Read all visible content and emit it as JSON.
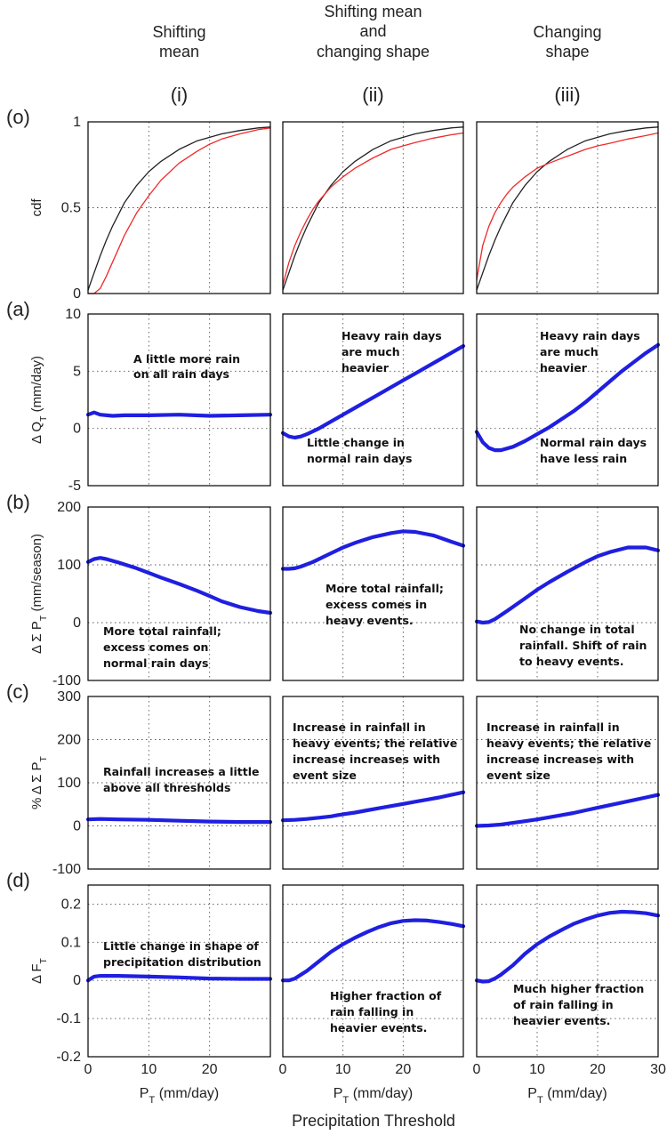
{
  "columns": [
    {
      "title_lines": [
        "Shifting",
        "mean"
      ],
      "roman": "(i)"
    },
    {
      "title_lines": [
        "Shifting mean",
        "and",
        "changing shape"
      ],
      "roman": "(ii)"
    },
    {
      "title_lines": [
        "Changing",
        "shape"
      ],
      "roman": "(iii)"
    }
  ],
  "rows": [
    {
      "label": "(o)",
      "ylabel": "cdf",
      "ylabel_sub": "",
      "ylabel_suffix": "",
      "ylim": [
        0,
        1
      ],
      "yticks": [
        "0",
        "0.5",
        "1"
      ]
    },
    {
      "label": "(a)",
      "ylabel": "Δ Q",
      "ylabel_sub": "T",
      "ylabel_suffix": " (mm/day)",
      "ylim": [
        -5,
        10
      ],
      "yticks": [
        "-5",
        "0",
        "5",
        "10"
      ]
    },
    {
      "label": "(b)",
      "ylabel": "Δ Σ P",
      "ylabel_sub": "T",
      "ylabel_suffix": " (mm/season)",
      "ylim": [
        -100,
        200
      ],
      "yticks": [
        "-100",
        "0",
        "100",
        "200"
      ]
    },
    {
      "label": "(c)",
      "ylabel": "% Δ Σ P",
      "ylabel_sub": "T",
      "ylabel_suffix": "",
      "ylim": [
        -100,
        300
      ],
      "yticks": [
        "-100",
        "0",
        "100",
        "200",
        "300"
      ]
    },
    {
      "label": "(d)",
      "ylabel": "Δ F",
      "ylabel_sub": "T",
      "ylabel_suffix": "",
      "ylim": [
        -0.2,
        0.25
      ],
      "yticks": [
        "-0.2",
        "-0.1",
        "0",
        "0.1",
        "0.2"
      ]
    }
  ],
  "x_axis": {
    "xlim": [
      0,
      30
    ],
    "xticks": [
      "0",
      "10",
      "20"
    ],
    "xticks_last_column": [
      "0",
      "10",
      "20",
      "30"
    ],
    "label_main": "P",
    "label_sub": "T",
    "label_suffix": " (mm/day)",
    "common_label": "Precipitation Threshold"
  },
  "annotations": {
    "a": [
      [
        "A little more rain",
        "on all rain days"
      ],
      [
        "Heavy rain days",
        "are much",
        "heavier",
        "Little change in",
        "normal rain days"
      ],
      [
        "Heavy rain days",
        "are much",
        "heavier",
        "Normal rain days",
        "have less rain"
      ]
    ],
    "b": [
      [
        "More total rainfall;",
        "excess comes on",
        "normal rain days"
      ],
      [
        "More total rainfall;",
        "excess comes in",
        "heavy events."
      ],
      [
        "No change in total",
        "rainfall. Shift of rain",
        "to heavy  events."
      ]
    ],
    "c": [
      [
        "Rainfall increases  a little",
        "above all thresholds"
      ],
      [
        "Increase in rainfall in",
        "heavy events; the relative",
        "increase increases with",
        "event size"
      ],
      [
        "Increase in rainfall in",
        "heavy events; the relative",
        "increase increases with",
        "event size"
      ]
    ],
    "d": [
      [
        "Little change in shape of",
        "precipitation distribution"
      ],
      [
        "Higher fraction of",
        "rain falling  in",
        "heavier events."
      ],
      [
        "Much higher fraction",
        "of rain falling  in",
        "heavier events."
      ]
    ]
  },
  "chart_data": {
    "type": "line",
    "x_range": [
      0,
      30
    ],
    "colors": {
      "baseline_cdf": "#222222",
      "changed_cdf": "#ee2a2a",
      "change_curves": "#1f1fe0"
    },
    "panels": [
      {
        "row": "o",
        "col": "i",
        "series": [
          {
            "color": "#222222",
            "x": [
              0,
              1,
              2,
              3,
              4,
              5,
              6,
              8,
              10,
              12,
              15,
              18,
              20,
              22,
              25,
              28,
              30
            ],
            "y": [
              0.02,
              0.12,
              0.22,
              0.31,
              0.39,
              0.46,
              0.53,
              0.63,
              0.71,
              0.77,
              0.84,
              0.89,
              0.91,
              0.93,
              0.95,
              0.965,
              0.97
            ]
          },
          {
            "color": "#ee2a2a",
            "x": [
              0,
              1,
              2,
              3,
              4,
              5,
              6,
              8,
              10,
              12,
              15,
              18,
              20,
              22,
              25,
              28,
              30
            ],
            "y": [
              0,
              0,
              0.03,
              0.1,
              0.18,
              0.26,
              0.34,
              0.47,
              0.57,
              0.66,
              0.76,
              0.83,
              0.87,
              0.9,
              0.93,
              0.955,
              0.965
            ]
          }
        ]
      },
      {
        "row": "o",
        "col": "ii",
        "series": [
          {
            "color": "#222222",
            "x": [
              0,
              1,
              2,
              3,
              4,
              5,
              6,
              8,
              10,
              12,
              15,
              18,
              20,
              22,
              25,
              28,
              30
            ],
            "y": [
              0.02,
              0.12,
              0.22,
              0.31,
              0.39,
              0.46,
              0.53,
              0.63,
              0.71,
              0.77,
              0.84,
              0.89,
              0.91,
              0.93,
              0.95,
              0.965,
              0.97
            ]
          },
          {
            "color": "#ee2a2a",
            "x": [
              0,
              1,
              2,
              3,
              4,
              5,
              6,
              8,
              10,
              12,
              15,
              18,
              20,
              22,
              25,
              28,
              30
            ],
            "y": [
              0.05,
              0.18,
              0.28,
              0.36,
              0.43,
              0.49,
              0.54,
              0.62,
              0.68,
              0.73,
              0.79,
              0.84,
              0.86,
              0.88,
              0.905,
              0.925,
              0.935
            ]
          }
        ]
      },
      {
        "row": "o",
        "col": "iii",
        "series": [
          {
            "color": "#222222",
            "x": [
              0,
              1,
              2,
              3,
              4,
              5,
              6,
              8,
              10,
              12,
              15,
              18,
              20,
              22,
              25,
              28,
              30
            ],
            "y": [
              0.02,
              0.12,
              0.22,
              0.31,
              0.39,
              0.46,
              0.53,
              0.63,
              0.71,
              0.77,
              0.84,
              0.89,
              0.91,
              0.93,
              0.95,
              0.965,
              0.97
            ]
          },
          {
            "color": "#ee2a2a",
            "x": [
              0,
              1,
              2,
              3,
              4,
              5,
              6,
              8,
              10,
              12,
              15,
              18,
              20,
              22,
              25,
              28,
              30
            ],
            "y": [
              0.08,
              0.28,
              0.39,
              0.47,
              0.53,
              0.58,
              0.62,
              0.68,
              0.73,
              0.76,
              0.8,
              0.84,
              0.86,
              0.875,
              0.9,
              0.92,
              0.935
            ]
          }
        ]
      },
      {
        "row": "a",
        "col": "i",
        "series": [
          {
            "color": "#1f1fe0",
            "x": [
              0,
              1,
              2,
              4,
              6,
              10,
              15,
              20,
              25,
              30
            ],
            "y": [
              1.2,
              1.4,
              1.2,
              1.1,
              1.15,
              1.15,
              1.2,
              1.1,
              1.15,
              1.2
            ]
          }
        ]
      },
      {
        "row": "a",
        "col": "ii",
        "series": [
          {
            "color": "#1f1fe0",
            "x": [
              0,
              1,
              2,
              3,
              4,
              6,
              8,
              10,
              12,
              14,
              16,
              18,
              20,
              22,
              24,
              26,
              28,
              30
            ],
            "y": [
              -0.4,
              -0.7,
              -0.8,
              -0.7,
              -0.5,
              0,
              0.6,
              1.2,
              1.8,
              2.4,
              3,
              3.6,
              4.2,
              4.8,
              5.4,
              6,
              6.6,
              7.2
            ]
          }
        ]
      },
      {
        "row": "a",
        "col": "iii",
        "series": [
          {
            "color": "#1f1fe0",
            "x": [
              0,
              1,
              2,
              3,
              4,
              6,
              8,
              10,
              12,
              14,
              16,
              18,
              20,
              22,
              24,
              26,
              28,
              30
            ],
            "y": [
              -0.3,
              -1.2,
              -1.7,
              -1.9,
              -1.9,
              -1.6,
              -1.1,
              -0.5,
              0.1,
              0.8,
              1.5,
              2.3,
              3.2,
              4.1,
              5,
              5.8,
              6.6,
              7.3
            ]
          }
        ]
      },
      {
        "row": "b",
        "col": "i",
        "series": [
          {
            "color": "#1f1fe0",
            "x": [
              0,
              1,
              2,
              3,
              5,
              8,
              10,
              12,
              15,
              18,
              20,
              22,
              25,
              28,
              30
            ],
            "y": [
              105,
              110,
              112,
              110,
              104,
              94,
              86,
              78,
              67,
              55,
              46,
              37,
              27,
              20,
              17
            ]
          }
        ]
      },
      {
        "row": "b",
        "col": "ii",
        "series": [
          {
            "color": "#1f1fe0",
            "x": [
              0,
              1,
              2,
              3,
              5,
              8,
              10,
              12,
              15,
              18,
              20,
              22,
              25,
              28,
              30
            ],
            "y": [
              93,
              93,
              94,
              97,
              105,
              120,
              130,
              138,
              148,
              155,
              158,
              157,
              151,
              140,
              133
            ]
          }
        ]
      },
      {
        "row": "b",
        "col": "iii",
        "series": [
          {
            "color": "#1f1fe0",
            "x": [
              0,
              1,
              2,
              3,
              5,
              8,
              10,
              12,
              15,
              18,
              20,
              22,
              25,
              28,
              30
            ],
            "y": [
              2,
              0,
              1,
              6,
              20,
              42,
              57,
              70,
              88,
              105,
              115,
              122,
              130,
              130,
              125
            ]
          }
        ]
      },
      {
        "row": "c",
        "col": "i",
        "series": [
          {
            "color": "#1f1fe0",
            "x": [
              0,
              2,
              5,
              10,
              15,
              20,
              25,
              30
            ],
            "y": [
              15,
              16,
              15,
              14,
              12,
              10,
              9,
              9
            ]
          }
        ]
      },
      {
        "row": "c",
        "col": "ii",
        "series": [
          {
            "color": "#1f1fe0",
            "x": [
              0,
              2,
              4,
              6,
              8,
              10,
              12,
              14,
              16,
              18,
              20,
              22,
              24,
              26,
              28,
              30
            ],
            "y": [
              13,
              14,
              16,
              19,
              22,
              27,
              31,
              36,
              41,
              46,
              51,
              56,
              61,
              66,
              72,
              78
            ]
          }
        ]
      },
      {
        "row": "c",
        "col": "iii",
        "series": [
          {
            "color": "#1f1fe0",
            "x": [
              0,
              2,
              4,
              6,
              8,
              10,
              12,
              14,
              16,
              18,
              20,
              22,
              24,
              26,
              28,
              30
            ],
            "y": [
              0,
              1,
              3,
              7,
              11,
              15,
              20,
              25,
              30,
              36,
              42,
              48,
              54,
              60,
              66,
              72
            ]
          }
        ]
      },
      {
        "row": "d",
        "col": "i",
        "series": [
          {
            "color": "#1f1fe0",
            "x": [
              0,
              1,
              2,
              5,
              10,
              15,
              20,
              25,
              30
            ],
            "y": [
              0,
              0.01,
              0.012,
              0.012,
              0.01,
              0.008,
              0.005,
              0.004,
              0.004
            ]
          }
        ]
      },
      {
        "row": "d",
        "col": "ii",
        "series": [
          {
            "color": "#1f1fe0",
            "x": [
              0,
              1,
              2,
              3,
              4,
              6,
              8,
              10,
              12,
              14,
              16,
              18,
              20,
              22,
              24,
              26,
              28,
              30
            ],
            "y": [
              0,
              0,
              0.005,
              0.015,
              0.025,
              0.05,
              0.075,
              0.095,
              0.112,
              0.127,
              0.14,
              0.15,
              0.156,
              0.158,
              0.157,
              0.153,
              0.148,
              0.142
            ]
          }
        ]
      },
      {
        "row": "d",
        "col": "iii",
        "series": [
          {
            "color": "#1f1fe0",
            "x": [
              0,
              1,
              2,
              3,
              4,
              6,
              8,
              10,
              12,
              14,
              16,
              18,
              20,
              22,
              24,
              26,
              28,
              30
            ],
            "y": [
              0,
              -0.003,
              -0.002,
              0.005,
              0.015,
              0.04,
              0.07,
              0.095,
              0.115,
              0.132,
              0.148,
              0.16,
              0.17,
              0.177,
              0.18,
              0.179,
              0.176,
              0.17
            ]
          }
        ]
      }
    ]
  }
}
